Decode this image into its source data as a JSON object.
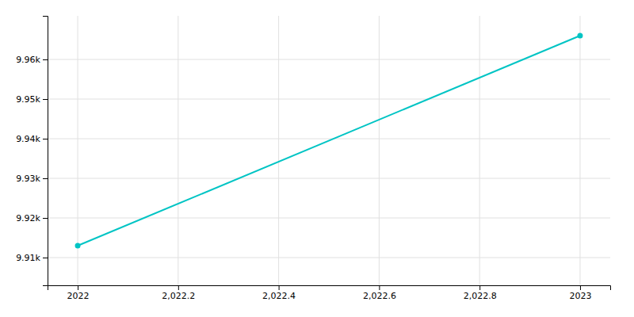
{
  "chart_data": {
    "type": "line",
    "x": [
      2022,
      2023
    ],
    "values": [
      9913,
      9966
    ],
    "color": "#00C4C4",
    "marker": "circle",
    "xlim": [
      2021.94,
      2023.06
    ],
    "ylim": [
      9903,
      9971
    ],
    "xticks": [
      2022,
      {
        "value": 2022.2,
        "label": "2,022.2"
      },
      {
        "value": 2022.4,
        "label": "2,022.4"
      },
      {
        "value": 2022.6,
        "label": "2,022.6"
      },
      {
        "value": 2022.8,
        "label": "2,022.8"
      },
      2023
    ],
    "yticks": [
      {
        "value": 9910,
        "label": "9.91k"
      },
      {
        "value": 9920,
        "label": "9.92k"
      },
      {
        "value": 9930,
        "label": "9.93k"
      },
      {
        "value": 9940,
        "label": "9.94k"
      },
      {
        "value": 9950,
        "label": "9.95k"
      },
      {
        "value": 9960,
        "label": "9.96k"
      }
    ],
    "grid": true
  }
}
